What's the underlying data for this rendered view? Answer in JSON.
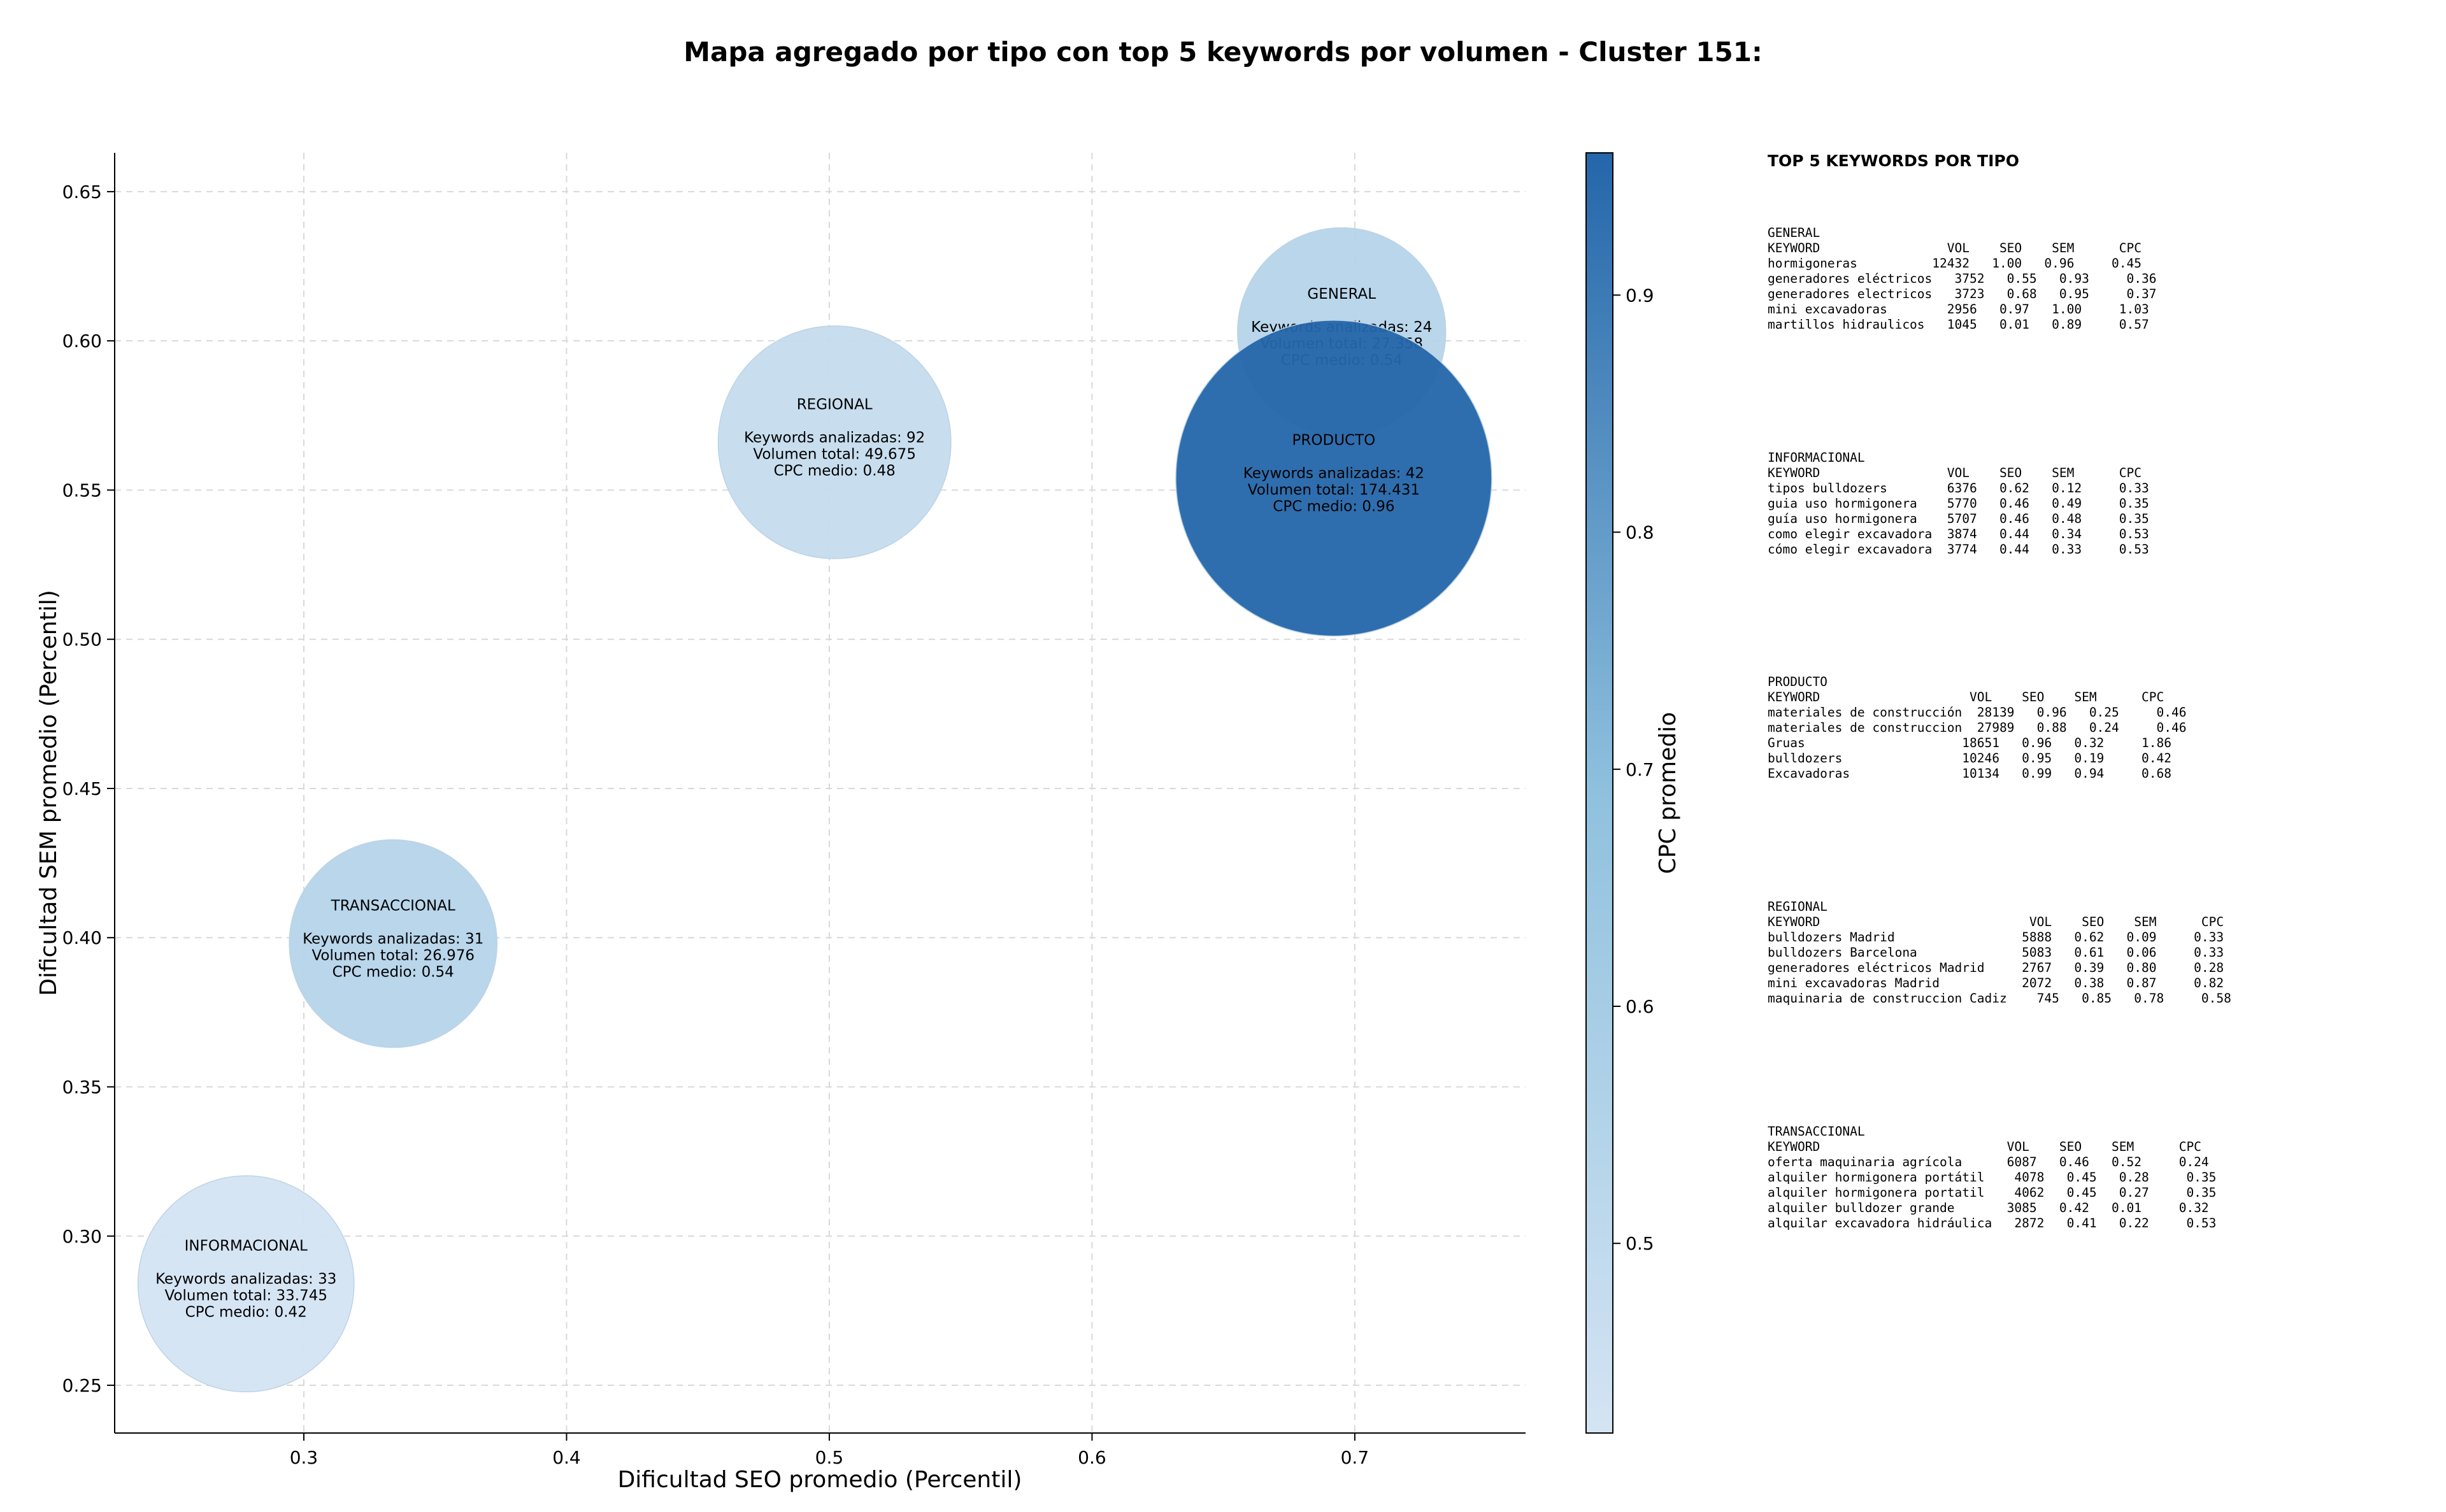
{
  "chart_data": {
    "type": "scatter",
    "title": "Mapa agregado por tipo con top 5 keywords por volumen - Cluster 151:",
    "xlabel": "Dificultad SEO promedio (Percentil)",
    "ylabel": "Dificultad SEM promedio (Percentil)",
    "xlim": [
      0.228,
      0.765
    ],
    "ylim": [
      0.234,
      0.663
    ],
    "xticks": [
      "0.3",
      "0.4",
      "0.5",
      "0.6",
      "0.7"
    ],
    "yticks": [
      "0.25",
      "0.30",
      "0.35",
      "0.40",
      "0.45",
      "0.50",
      "0.55",
      "0.60",
      "0.65"
    ],
    "grid": true,
    "colorbar": {
      "label": "CPC promedio",
      "min": 0.42,
      "max": 0.96,
      "ticks": [
        "0.5",
        "0.6",
        "0.7",
        "0.8",
        "0.9"
      ],
      "color_low": "#d4e4f3",
      "color_mid": "#8fc1de",
      "color_high": "#2466aa"
    },
    "bubbles": [
      {
        "name": "GENERAL",
        "x": 0.695,
        "y": 0.603,
        "keywords_line": "Keywords analizadas: 24",
        "volume_line": "Volumen total: 27.358",
        "cpc_line": "CPC medio: 0.54",
        "volume": 27358,
        "cpc": 0.54
      },
      {
        "name": "REGIONAL",
        "x": 0.502,
        "y": 0.566,
        "keywords_line": "Keywords analizadas: 92",
        "volume_line": "Volumen total: 49.675",
        "cpc_line": "CPC medio: 0.48",
        "volume": 49675,
        "cpc": 0.48
      },
      {
        "name": "PRODUCTO",
        "x": 0.692,
        "y": 0.554,
        "keywords_line": "Keywords analizadas: 42",
        "volume_line": "Volumen total: 174.431",
        "cpc_line": "CPC medio: 0.96",
        "volume": 174431,
        "cpc": 0.96
      },
      {
        "name": "TRANSACCIONAL",
        "x": 0.334,
        "y": 0.398,
        "keywords_line": "Keywords analizadas: 31",
        "volume_line": "Volumen total: 26.976",
        "cpc_line": "CPC medio: 0.54",
        "volume": 26976,
        "cpc": 0.54
      },
      {
        "name": "INFORMACIONAL",
        "x": 0.278,
        "y": 0.284,
        "keywords_line": "Keywords analizadas: 33",
        "volume_line": "Volumen total: 33.745",
        "cpc_line": "CPC medio: 0.42",
        "volume": 33745,
        "cpc": 0.42
      }
    ]
  },
  "panel": {
    "heading": "TOP 5 KEYWORDS POR TIPO",
    "sections": [
      {
        "lines": [
          "GENERAL",
          "KEYWORD                 VOL    SEO    SEM      CPC",
          "hormigoneras          12432   1.00   0.96     0.45",
          "generadores eléctricos   3752   0.55   0.93     0.36",
          "generadores electricos   3723   0.68   0.95     0.37",
          "mini excavadoras        2956   0.97   1.00     1.03",
          "martillos hidraulicos   1045   0.01   0.89     0.57"
        ]
      },
      {
        "lines": [
          "INFORMACIONAL",
          "KEYWORD                 VOL    SEO    SEM      CPC",
          "tipos bulldozers        6376   0.62   0.12     0.33",
          "guia uso hormigonera    5770   0.46   0.49     0.35",
          "guía uso hormigonera    5707   0.46   0.48     0.35",
          "como elegir excavadora  3874   0.44   0.34     0.53",
          "cómo elegir excavadora  3774   0.44   0.33     0.53"
        ]
      },
      {
        "lines": [
          "PRODUCTO",
          "KEYWORD                    VOL    SEO    SEM      CPC",
          "materiales de construcción  28139   0.96   0.25     0.46",
          "materiales de construccion  27989   0.88   0.24     0.46",
          "Gruas                     18651   0.96   0.32     1.86",
          "bulldozers                10246   0.95   0.19     0.42",
          "Excavadoras               10134   0.99   0.94     0.68"
        ]
      },
      {
        "lines": [
          "REGIONAL",
          "KEYWORD                            VOL    SEO    SEM      CPC",
          "bulldozers Madrid                 5888   0.62   0.09     0.33",
          "bulldozers Barcelona              5083   0.61   0.06     0.33",
          "generadores eléctricos Madrid     2767   0.39   0.80     0.28",
          "mini excavadoras Madrid           2072   0.38   0.87     0.82",
          "maquinaria de construccion Cadiz    745   0.85   0.78     0.58"
        ]
      },
      {
        "lines": [
          "TRANSACCIONAL",
          "KEYWORD                         VOL    SEO    SEM      CPC",
          "oferta maquinaria agrícola      6087   0.46   0.52     0.24",
          "alquiler hormigonera portátil    4078   0.45   0.28     0.35",
          "alquiler hormigonera portatil    4062   0.45   0.27     0.35",
          "alquiler bulldozer grande       3085   0.42   0.01     0.32",
          "alquilar excavadora hidráulica   2872   0.41   0.22     0.53"
        ]
      }
    ]
  }
}
